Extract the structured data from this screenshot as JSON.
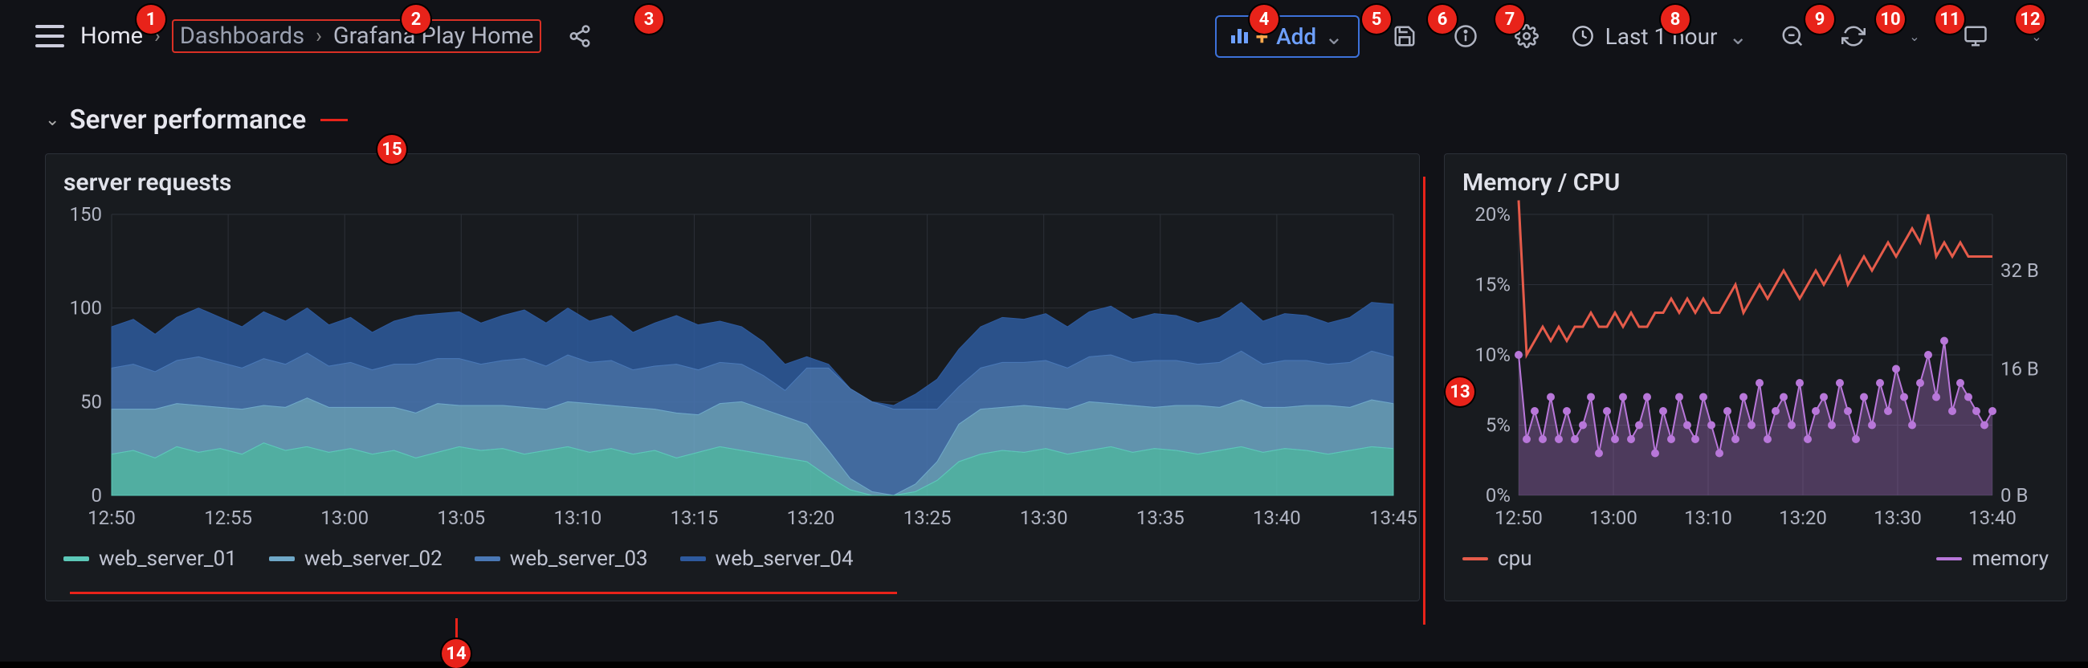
{
  "theme": {
    "bg": "#111217",
    "panel_bg": "#181b1f",
    "panel_border": "#2c3038",
    "text": "#ccccdc",
    "text_muted": "#9aa0b0",
    "accent_blue": "#3d71d9",
    "accent_blue_text": "#6ea0ff",
    "annotation_red": "#e8231a"
  },
  "toolbar": {
    "breadcrumb": {
      "home": "Home",
      "items": [
        "Dashboards",
        "Grafana Play Home"
      ]
    },
    "add_label": "Add",
    "time_label": "Last 1 hour"
  },
  "annotations": {
    "1": "Home breadcrumb link",
    "2": "Breadcrumb trail",
    "3": "Share dashboard",
    "4": "Add panel",
    "5": "Save dashboard",
    "6": "Dashboard insights",
    "7": "Dashboard settings",
    "8": "Time range picker",
    "9": "Zoom out",
    "10": "Refresh",
    "11": "Refresh interval",
    "12": "View mode / cycle",
    "13": "Panel",
    "14": "Panel legend",
    "15": "Row header"
  },
  "row": {
    "title": "Server performance"
  },
  "panel_left": {
    "title": "server requests",
    "type": "stacked-area",
    "y": {
      "min": 0,
      "max": 150,
      "ticks": [
        0,
        50,
        100,
        150
      ],
      "label_fontsize": 24,
      "label_color": "#b0b4c2"
    },
    "x": {
      "ticks": [
        "12:50",
        "12:55",
        "13:00",
        "13:05",
        "13:10",
        "13:15",
        "13:20",
        "13:25",
        "13:30",
        "13:35",
        "13:40",
        "13:45"
      ],
      "label_fontsize": 24,
      "label_color": "#b0b4c2"
    },
    "grid_color": "#2c3038",
    "series": [
      {
        "name": "web_server_01",
        "color": "#5cc8b8",
        "values": [
          22,
          24,
          20,
          26,
          23,
          25,
          22,
          28,
          24,
          26,
          23,
          25,
          22,
          24,
          20,
          23,
          26,
          24,
          25,
          22,
          24,
          26,
          23,
          25,
          22,
          24,
          20,
          23,
          26,
          24,
          22,
          20,
          18,
          10,
          3,
          0,
          0,
          2,
          8,
          18,
          22,
          24,
          23,
          25,
          22,
          24,
          26,
          23,
          25,
          24,
          22,
          24,
          26,
          23,
          25,
          24,
          22,
          24,
          26,
          25
        ]
      },
      {
        "name": "web_server_02",
        "color": "#6fa8c7",
        "values": [
          24,
          22,
          26,
          23,
          25,
          22,
          24,
          20,
          23,
          26,
          24,
          22,
          25,
          23,
          24,
          26,
          22,
          24,
          23,
          25,
          22,
          24,
          26,
          23,
          25,
          22,
          24,
          20,
          23,
          26,
          24,
          22,
          20,
          14,
          6,
          2,
          0,
          4,
          10,
          20,
          24,
          23,
          25,
          22,
          24,
          26,
          23,
          25,
          22,
          24,
          26,
          23,
          25,
          24,
          22,
          24,
          26,
          23,
          25,
          24
        ]
      },
      {
        "name": "web_server_03",
        "color": "#4a78b5",
        "values": [
          22,
          24,
          20,
          23,
          26,
          24,
          22,
          25,
          23,
          24,
          22,
          24,
          20,
          23,
          26,
          24,
          25,
          22,
          24,
          26,
          23,
          25,
          22,
          24,
          20,
          23,
          26,
          24,
          22,
          20,
          18,
          14,
          30,
          44,
          48,
          48,
          46,
          40,
          28,
          20,
          22,
          24,
          23,
          25,
          22,
          24,
          26,
          23,
          25,
          24,
          22,
          24,
          26,
          23,
          25,
          24,
          22,
          24,
          26,
          25
        ]
      },
      {
        "name": "web_server_04",
        "color": "#2e5a9e",
        "values": [
          22,
          24,
          20,
          23,
          26,
          24,
          22,
          25,
          23,
          24,
          22,
          24,
          20,
          23,
          26,
          24,
          25,
          22,
          24,
          26,
          23,
          25,
          22,
          24,
          20,
          23,
          26,
          24,
          22,
          20,
          18,
          14,
          6,
          2,
          0,
          0,
          2,
          8,
          16,
          20,
          22,
          24,
          23,
          25,
          22,
          24,
          26,
          23,
          25,
          24,
          22,
          24,
          26,
          23,
          25,
          24,
          22,
          24,
          26,
          28
        ]
      }
    ],
    "legend_labels": [
      "web_server_01",
      "web_server_02",
      "web_server_03",
      "web_server_04"
    ],
    "legend_colors": [
      "#5cc8b8",
      "#6fa8c7",
      "#4a78b5",
      "#2e5a9e"
    ]
  },
  "panel_right": {
    "title": "Memory / CPU",
    "type": "line-plus-area",
    "y_left": {
      "min": 0,
      "max": 20,
      "ticks": [
        "0%",
        "5%",
        "10%",
        "15%",
        "20%"
      ],
      "label_fontsize": 24,
      "label_color": "#b0b4c2"
    },
    "y_right": {
      "ticks": [
        "0 B",
        "16 B",
        "32 B"
      ],
      "positions_pct": [
        0,
        45,
        80
      ],
      "label_fontsize": 24,
      "label_color": "#b0b4c2"
    },
    "x": {
      "ticks": [
        "12:50",
        "13:00",
        "13:10",
        "13:20",
        "13:30",
        "13:40"
      ],
      "label_fontsize": 24,
      "label_color": "#b0b4c2"
    },
    "grid_color": "#2c3038",
    "cpu": {
      "name": "cpu",
      "color": "#e55b4a",
      "line_width": 3,
      "values": [
        21,
        10,
        11,
        12,
        11,
        12,
        11,
        12,
        12,
        13,
        12,
        12,
        13,
        12,
        13,
        12,
        12,
        13,
        13,
        14,
        13,
        14,
        13,
        14,
        13,
        13,
        14,
        15,
        13,
        14,
        15,
        14,
        15,
        16,
        15,
        14,
        15,
        16,
        15,
        16,
        17,
        15,
        16,
        17,
        16,
        17,
        18,
        17,
        18,
        19,
        18,
        20,
        17,
        18,
        17,
        18,
        17,
        17,
        17,
        17
      ]
    },
    "memory": {
      "name": "memory",
      "color": "#b877d9",
      "fill": "#b877d955",
      "marker_size": 5,
      "values": [
        10,
        4,
        6,
        4,
        7,
        4,
        6,
        4,
        5,
        7,
        3,
        6,
        4,
        7,
        4,
        5,
        7,
        3,
        6,
        4,
        7,
        5,
        4,
        7,
        5,
        3,
        6,
        4,
        7,
        5,
        8,
        4,
        6,
        7,
        5,
        8,
        4,
        6,
        7,
        5,
        8,
        6,
        4,
        7,
        5,
        8,
        6,
        9,
        7,
        5,
        8,
        10,
        7,
        11,
        6,
        8,
        7,
        6,
        5,
        6
      ]
    },
    "legend": [
      {
        "label": "cpu",
        "color": "#e55b4a",
        "type": "line"
      },
      {
        "label": "memory",
        "color": "#b877d9",
        "type": "line"
      }
    ]
  }
}
